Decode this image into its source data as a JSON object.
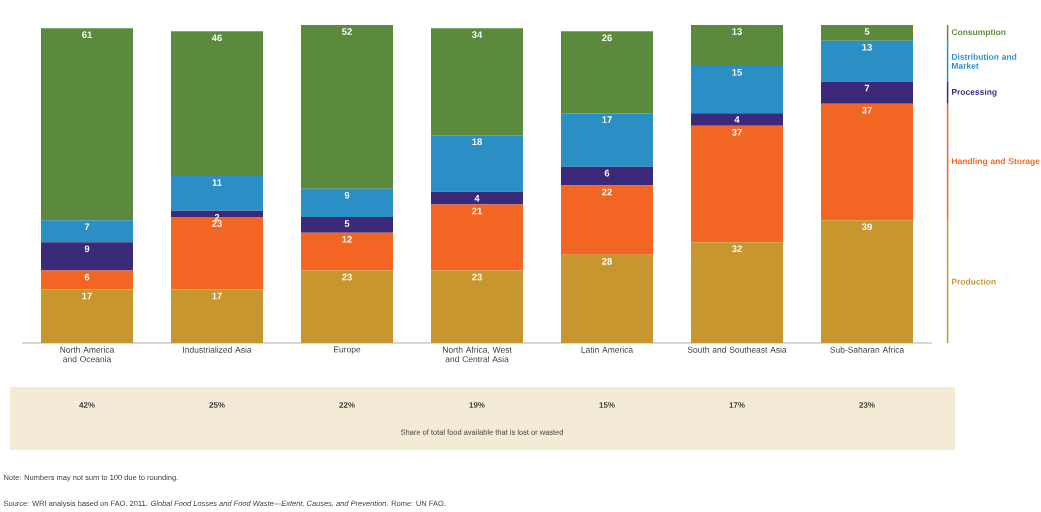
{
  "chart_data": {
    "type": "bar",
    "stacked": true,
    "data_labels": true,
    "legend": "right",
    "categories": [
      "North America and Oceania",
      "Industrialized Asia",
      "Europe",
      "North Africa, West and Central Asia",
      "Latin America",
      "South and Southeast Asia",
      "Sub-Saharan Africa"
    ],
    "series": [
      {
        "name": "Production",
        "color": "#c8962e",
        "values": [
          17,
          17,
          23,
          23,
          28,
          32,
          39
        ]
      },
      {
        "name": "Handling and Storage",
        "color": "#f26522",
        "values": [
          6,
          23,
          12,
          21,
          22,
          37,
          37
        ]
      },
      {
        "name": "Processing",
        "color": "#3b2a7a",
        "values": [
          9,
          2,
          5,
          4,
          6,
          4,
          7
        ]
      },
      {
        "name": "Distribution and Market",
        "color": "#2a8fc4",
        "values": [
          7,
          11,
          9,
          18,
          17,
          15,
          13
        ]
      },
      {
        "name": "Consumption",
        "color": "#5b8a3c",
        "values": [
          61,
          46,
          52,
          34,
          26,
          13,
          5
        ]
      }
    ],
    "annotations": [
      "42%",
      "25%",
      "22%",
      "19%",
      "15%",
      "17%",
      "23%",
      "Share of total food available that is lost or wasted",
      "Note: Numbers may not sum to 100 due to rounding.",
      "Source: WRI analysis based on FAO. 2011. *Global Food Losses and Food Waste—Extent, Causes, and Prevention*. Rome: UN FAO."
    ]
  }
}
